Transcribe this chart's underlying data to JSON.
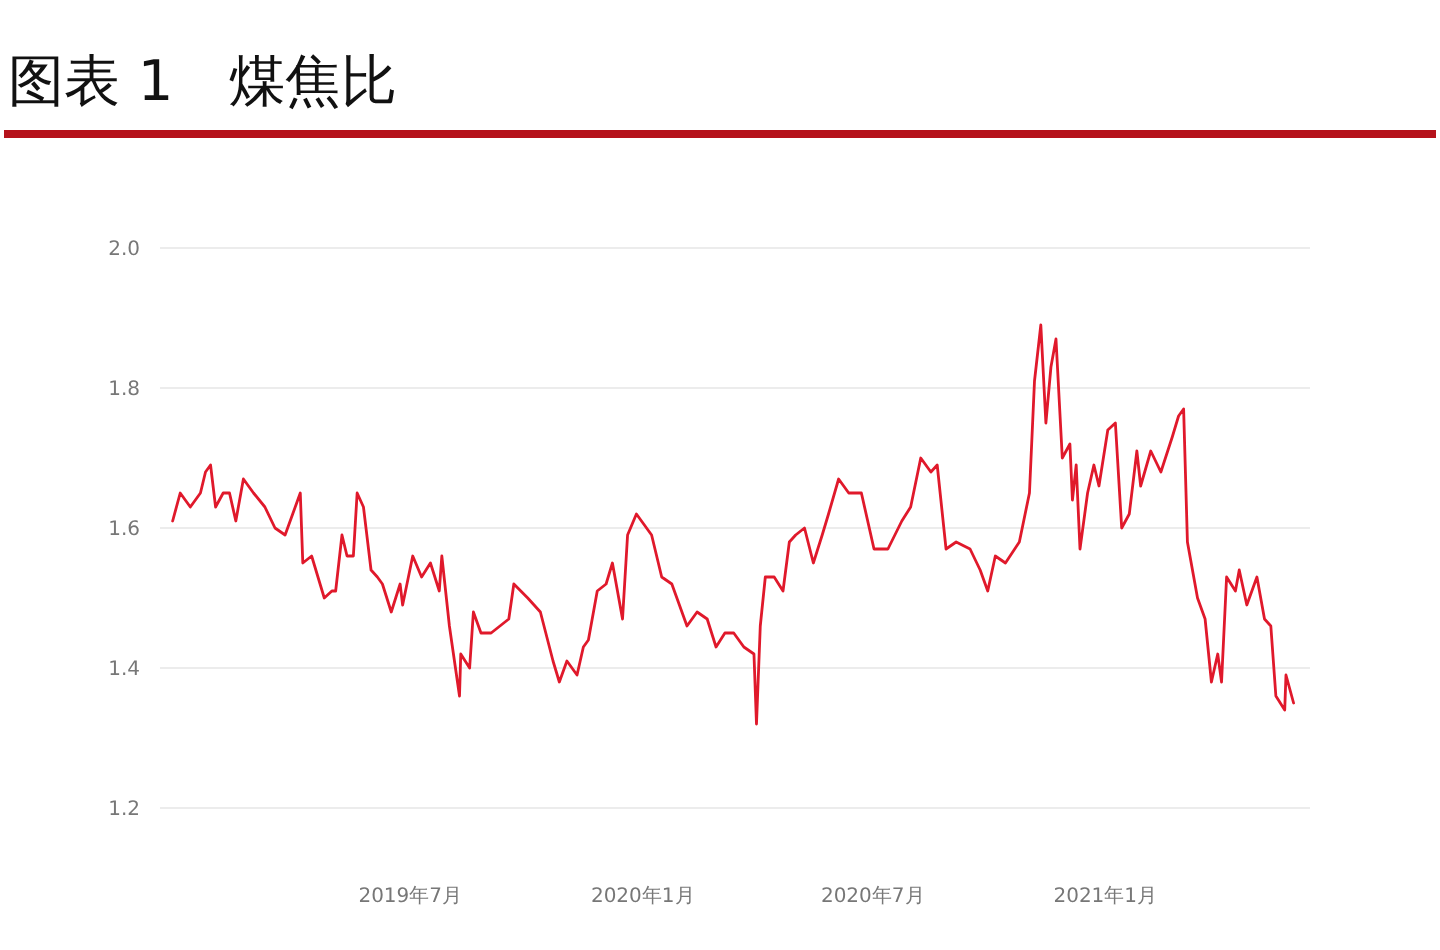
{
  "chart_data": {
    "type": "line",
    "title": "图表 1　煤焦比",
    "x": [
      "2018-12-25",
      "2018-12-31",
      "2019-01-08",
      "2019-01-16",
      "2019-01-20",
      "2019-01-24",
      "2019-01-28",
      "2019-02-03",
      "2019-02-08",
      "2019-02-13",
      "2019-02-19",
      "2019-02-27",
      "2019-03-08",
      "2019-03-16",
      "2019-03-24",
      "2019-03-30",
      "2019-04-05",
      "2019-04-07",
      "2019-04-14",
      "2019-04-24",
      "2019-04-30",
      "2019-05-03",
      "2019-05-08",
      "2019-05-12",
      "2019-05-17",
      "2019-05-20",
      "2019-05-25",
      "2019-05-31",
      "2019-06-05",
      "2019-06-09",
      "2019-06-16",
      "2019-06-23",
      "2019-06-25",
      "2019-07-03",
      "2019-07-10",
      "2019-07-17",
      "2019-07-24",
      "2019-07-26",
      "2019-08-01",
      "2019-08-09",
      "2019-08-10",
      "2019-08-17",
      "2019-08-20",
      "2019-08-26",
      "2019-09-03",
      "2019-09-10",
      "2019-09-17",
      "2019-09-21",
      "2019-10-02",
      "2019-10-12",
      "2019-10-22",
      "2019-10-27",
      "2019-11-02",
      "2019-11-10",
      "2019-11-15",
      "2019-11-19",
      "2019-11-26",
      "2019-12-03",
      "2019-12-08",
      "2019-12-16",
      "2019-12-20",
      "2019-12-27",
      "2019-12-31",
      "2020-01-08",
      "2020-01-16",
      "2020-01-24",
      "2020-02-05",
      "2020-02-13",
      "2020-02-21",
      "2020-02-28",
      "2020-03-06",
      "2020-03-13",
      "2020-03-21",
      "2020-03-29",
      "2020-03-31",
      "2020-04-03",
      "2020-04-07",
      "2020-04-14",
      "2020-04-21",
      "2020-04-26",
      "2020-05-01",
      "2020-05-08",
      "2020-05-15",
      "2020-05-22",
      "2020-05-27",
      "2020-06-04",
      "2020-06-12",
      "2020-06-22",
      "2020-07-02",
      "2020-07-13",
      "2020-07-24",
      "2020-07-31",
      "2020-08-08",
      "2020-08-16",
      "2020-08-21",
      "2020-08-28",
      "2020-09-05",
      "2020-09-16",
      "2020-09-24",
      "2020-09-30",
      "2020-10-06",
      "2020-10-14",
      "2020-10-25",
      "2020-11-02",
      "2020-11-06",
      "2020-11-11",
      "2020-11-15",
      "2020-11-19",
      "2020-11-23",
      "2020-11-28",
      "2020-12-04",
      "2020-12-06",
      "2020-12-09",
      "2020-12-12",
      "2020-12-18",
      "2020-12-23",
      "2020-12-27",
      "2021-01-03",
      "2021-01-09",
      "2021-01-14",
      "2021-01-20",
      "2021-01-26",
      "2021-01-29",
      "2021-02-06",
      "2021-02-14",
      "2021-02-23",
      "2021-02-28",
      "2021-03-04",
      "2021-03-07",
      "2021-03-15",
      "2021-03-21",
      "2021-03-26",
      "2021-03-31",
      "2021-04-03",
      "2021-04-07",
      "2021-04-14",
      "2021-04-17",
      "2021-04-23",
      "2021-05-01",
      "2021-05-07",
      "2021-05-12",
      "2021-05-16",
      "2021-05-23",
      "2021-05-24",
      "2021-05-30"
    ],
    "series": [
      {
        "color": "#e0192b",
        "values": [
          1.61,
          1.65,
          1.63,
          1.65,
          1.68,
          1.69,
          1.63,
          1.65,
          1.65,
          1.61,
          1.67,
          1.65,
          1.63,
          1.6,
          1.59,
          1.62,
          1.65,
          1.55,
          1.56,
          1.5,
          1.51,
          1.51,
          1.59,
          1.56,
          1.56,
          1.65,
          1.63,
          1.54,
          1.53,
          1.52,
          1.48,
          1.52,
          1.49,
          1.56,
          1.53,
          1.55,
          1.51,
          1.56,
          1.46,
          1.36,
          1.42,
          1.4,
          1.48,
          1.45,
          1.45,
          1.46,
          1.47,
          1.52,
          1.5,
          1.48,
          1.41,
          1.38,
          1.41,
          1.39,
          1.43,
          1.44,
          1.51,
          1.52,
          1.55,
          1.47,
          1.59,
          1.62,
          1.61,
          1.59,
          1.53,
          1.52,
          1.46,
          1.48,
          1.47,
          1.43,
          1.45,
          1.45,
          1.43,
          1.42,
          1.32,
          1.46,
          1.53,
          1.53,
          1.51,
          1.58,
          1.59,
          1.6,
          1.55,
          1.59,
          1.62,
          1.67,
          1.65,
          1.65,
          1.57,
          1.57,
          1.61,
          1.63,
          1.7,
          1.68,
          1.69,
          1.57,
          1.58,
          1.57,
          1.54,
          1.51,
          1.56,
          1.55,
          1.58,
          1.65,
          1.81,
          1.89,
          1.75,
          1.83,
          1.87,
          1.7,
          1.72,
          1.64,
          1.69,
          1.57,
          1.65,
          1.69,
          1.66,
          1.74,
          1.75,
          1.6,
          1.62,
          1.71,
          1.66,
          1.71,
          1.68,
          1.73,
          1.76,
          1.77,
          1.58,
          1.5,
          1.47,
          1.38,
          1.42,
          1.38,
          1.53,
          1.51,
          1.54,
          1.49,
          1.53,
          1.47,
          1.46,
          1.36,
          1.34,
          1.39,
          1.35
        ]
      }
    ],
    "xlim": [
      "2018-12-15",
      "2021-06-12"
    ],
    "xticks": [
      {
        "value": "2019-07-01",
        "label": "2019年7月"
      },
      {
        "value": "2020-01-01",
        "label": "2020年1月"
      },
      {
        "value": "2020-07-01",
        "label": "2020年7月"
      },
      {
        "value": "2021-01-01",
        "label": "2021年1月"
      }
    ],
    "ylim": [
      1.2,
      2.0
    ],
    "yticks": [
      1.2,
      1.4,
      1.6,
      1.8,
      {
        "value": 2.0,
        "label": "2.0"
      }
    ],
    "grid": "y"
  }
}
